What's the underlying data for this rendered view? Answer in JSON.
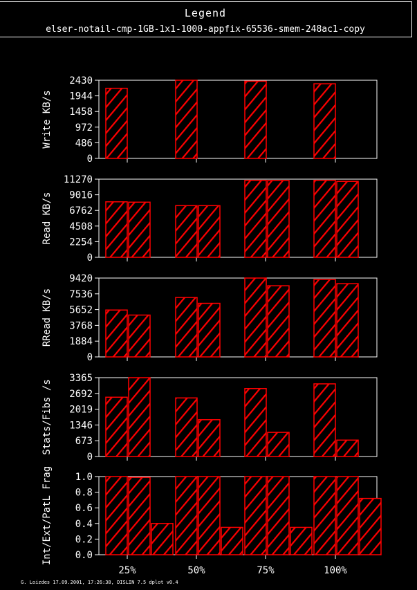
{
  "legend": {
    "title": "Legend",
    "entry": "elser-notail-cmp-1GB-1x1-1000-appfix-65536-smem-248ac1-copy"
  },
  "footer": "G. Loizdes 17.09.2001, 17:26:38, DISLIN 7.5 dplot v0.4",
  "colors": {
    "bar": "#ff0000",
    "axis": "#ffffff",
    "background": "#000000"
  },
  "chart_data": [
    {
      "type": "bar",
      "ylabel": "Write KB/s",
      "ylim": [
        0,
        2430
      ],
      "yticks": [
        "0",
        "486",
        "972",
        "1458",
        "1944",
        "2430"
      ],
      "categories": [
        "25%",
        "50%",
        "75%",
        "100%"
      ],
      "series": [
        {
          "values": [
            2180,
            2430,
            2400,
            2320
          ]
        }
      ]
    },
    {
      "type": "bar",
      "ylabel": "Read KB/s",
      "ylim": [
        0,
        11270
      ],
      "yticks": [
        "0",
        "2254",
        "4508",
        "6762",
        "9016",
        "11270"
      ],
      "categories": [
        "25%",
        "50%",
        "75%",
        "100%"
      ],
      "series": [
        {
          "values": [
            8000,
            7450,
            11100,
            11100
          ]
        },
        {
          "values": [
            7950,
            7450,
            11080,
            10950
          ]
        }
      ]
    },
    {
      "type": "bar",
      "ylabel": "RRead KB/s",
      "ylim": [
        0,
        9420
      ],
      "yticks": [
        "0",
        "1884",
        "3768",
        "5652",
        "7536",
        "9420"
      ],
      "categories": [
        "25%",
        "50%",
        "75%",
        "100%"
      ],
      "series": [
        {
          "values": [
            5600,
            7100,
            9420,
            9250
          ]
        },
        {
          "values": [
            5000,
            6400,
            8500,
            8750
          ]
        }
      ]
    },
    {
      "type": "bar",
      "ylabel": "Stats/Fibs /s",
      "ylim": [
        0,
        3365
      ],
      "yticks": [
        "0",
        "673",
        "1346",
        "2019",
        "2692",
        "3365"
      ],
      "categories": [
        "25%",
        "50%",
        "75%",
        "100%"
      ],
      "series": [
        {
          "values": [
            2530,
            2500,
            2900,
            3100
          ]
        },
        {
          "values": [
            3365,
            1570,
            1030,
            700
          ]
        }
      ]
    },
    {
      "type": "bar",
      "ylabel": "Int/Ext/PatL Frag",
      "ylim": [
        0,
        1.0
      ],
      "yticks": [
        "0.0",
        "0.2",
        "0.4",
        "0.6",
        "0.8",
        "1.0"
      ],
      "categories": [
        "25%",
        "50%",
        "75%",
        "100%"
      ],
      "series": [
        {
          "values": [
            1.0,
            1.0,
            1.0,
            1.0
          ]
        },
        {
          "values": [
            0.99,
            1.0,
            1.0,
            1.0
          ]
        },
        {
          "values": [
            0.4,
            0.35,
            0.35,
            0.72
          ]
        }
      ]
    }
  ]
}
